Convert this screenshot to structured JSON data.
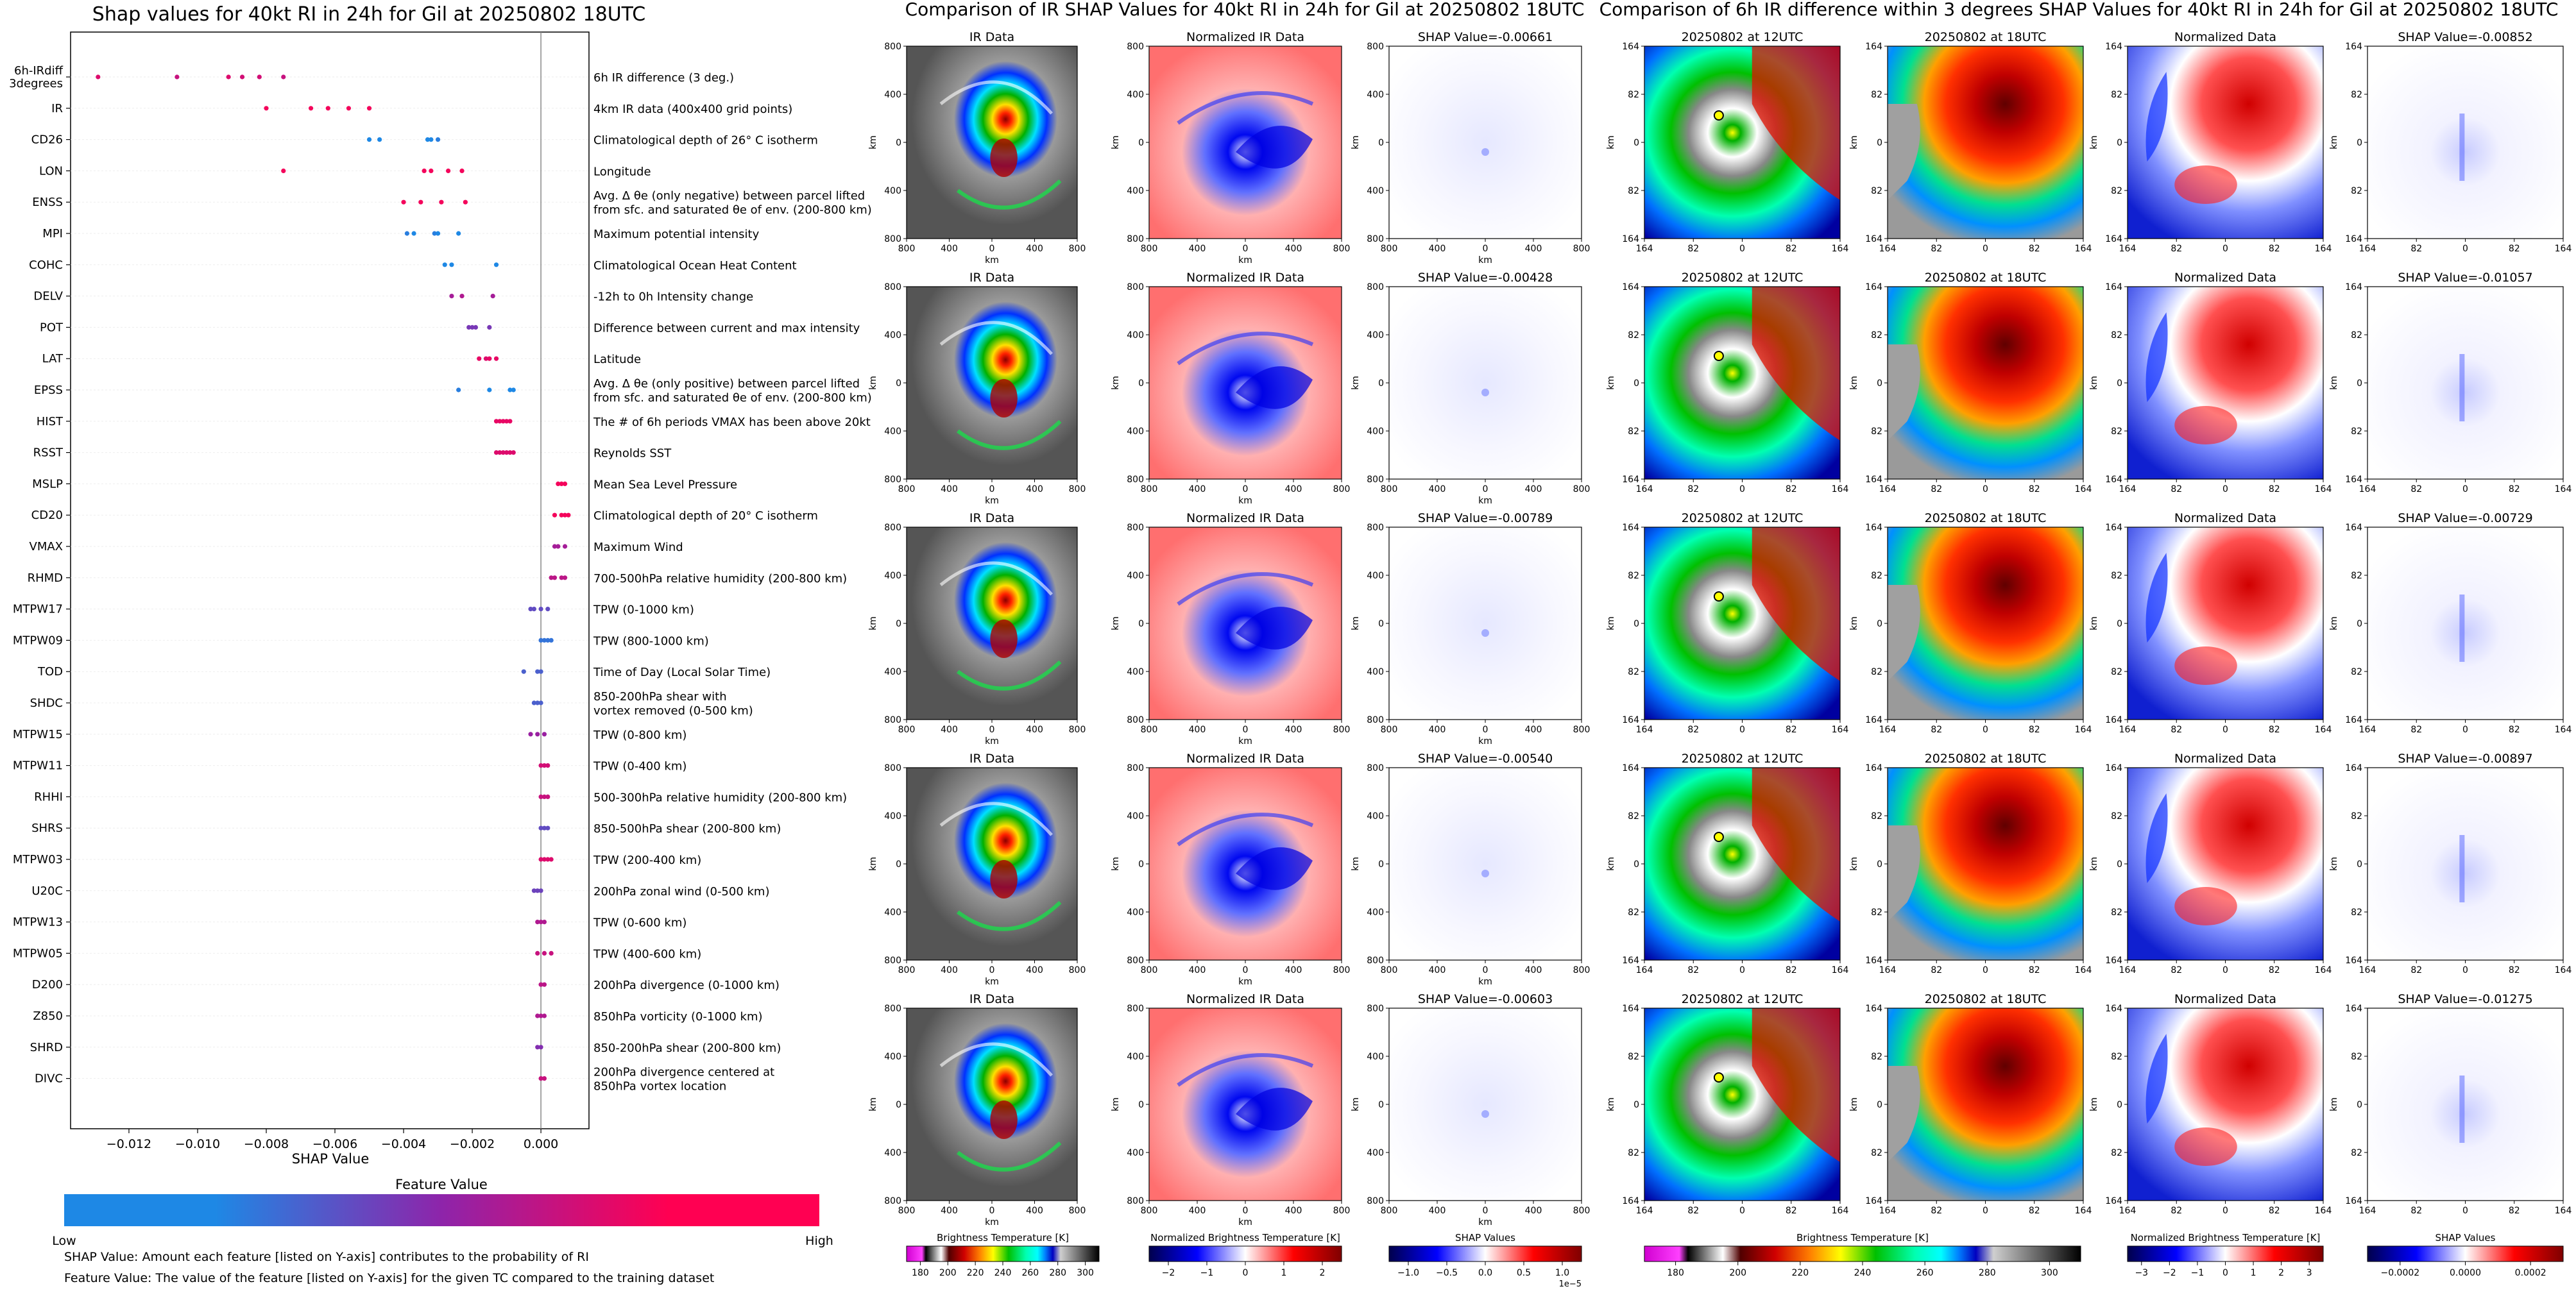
{
  "left_panel": {
    "title": "Shap values for 40kt RI in 24h for Gil at 20250802 18UTC",
    "xlabel": "SHAP Value",
    "xticks": [
      "−0.012",
      "−0.010",
      "−0.008",
      "−0.006",
      "−0.004",
      "−0.002",
      "0.000"
    ],
    "colorbar_title": "Feature Value",
    "colorbar_low": "Low",
    "colorbar_high": "High",
    "footnote1": "SHAP Value: Amount each feature [listed on Y-axis] contributes to the probability of RI",
    "footnote2": "Feature Value: The value of the feature [listed on Y-axis] for the given TC compared to the training dataset",
    "colors": {
      "low": "#1e88e5",
      "mid": "#8e24aa",
      "high": "#ff0052"
    }
  },
  "chart_data": [
    {
      "type": "scatter",
      "title": "Shap values for 40kt RI in 24h for Gil at 20250802 18UTC",
      "xlabel": "SHAP Value",
      "xlim": [
        -0.0137,
        0.0014
      ],
      "features": [
        {
          "name": "6h-IRdiff\n3degrees",
          "desc": "6h IR difference (3 deg.)",
          "shap": [
            -0.0129,
            -0.0106,
            -0.0091,
            -0.0087,
            -0.0082,
            -0.0075
          ],
          "fv": [
            0.85,
            0.75,
            0.85,
            0.8,
            0.8,
            0.75
          ]
        },
        {
          "name": "IR",
          "desc": "4km IR data (400x400 grid points)",
          "shap": [
            -0.008,
            -0.0067,
            -0.0062,
            -0.0056,
            -0.005
          ],
          "fv": [
            0.95,
            0.95,
            0.95,
            0.95,
            0.95
          ]
        },
        {
          "name": "CD26",
          "desc": "Climatological depth of 26° C isotherm",
          "shap": [
            -0.005,
            -0.0047,
            -0.0033,
            -0.0032,
            -0.003
          ],
          "fv": [
            0.0,
            0.0,
            0.0,
            0.0,
            0.05
          ]
        },
        {
          "name": "LON",
          "desc": "Longitude",
          "shap": [
            -0.0075,
            -0.0034,
            -0.0032,
            -0.0027,
            -0.0023
          ],
          "fv": [
            0.95,
            0.95,
            0.95,
            0.95,
            0.95
          ]
        },
        {
          "name": "ENSS",
          "desc": "Avg. Δ θe (only negative) between parcel lifted\nfrom sfc. and saturated θe of env. (200-800 km)",
          "shap": [
            -0.004,
            -0.0035,
            -0.0029,
            -0.0022
          ],
          "fv": [
            0.95,
            0.95,
            0.95,
            0.95
          ]
        },
        {
          "name": "MPI",
          "desc": "Maximum potential intensity",
          "shap": [
            -0.0039,
            -0.0037,
            -0.0031,
            -0.003,
            -0.0024
          ],
          "fv": [
            0.05,
            0.0,
            0.05,
            0.0,
            0.0
          ]
        },
        {
          "name": "COHC",
          "desc": "Climatological Ocean Heat Content",
          "shap": [
            -0.0028,
            -0.0026,
            -0.0013
          ],
          "fv": [
            0.0,
            0.0,
            0.0
          ]
        },
        {
          "name": "DELV",
          "desc": "-12h to 0h Intensity change",
          "shap": [
            -0.0026,
            -0.0023,
            -0.0014
          ],
          "fv": [
            0.6,
            0.65,
            0.6
          ]
        },
        {
          "name": "POT",
          "desc": "Difference between current and max intensity",
          "shap": [
            -0.0021,
            -0.002,
            -0.0019,
            -0.0015
          ],
          "fv": [
            0.4,
            0.4,
            0.4,
            0.4
          ]
        },
        {
          "name": "LAT",
          "desc": "Latitude",
          "shap": [
            -0.0018,
            -0.0016,
            -0.0015,
            -0.0013
          ],
          "fv": [
            0.9,
            0.85,
            0.9,
            0.9
          ]
        },
        {
          "name": "EPSS",
          "desc": "Avg. Δ θe (only positive) between parcel lifted\nfrom sfc. and saturated θe of env. (200-800 km)",
          "shap": [
            -0.0024,
            -0.0015,
            -0.0009,
            -0.0008
          ],
          "fv": [
            0.05,
            0.0,
            0.0,
            0.0
          ]
        },
        {
          "name": "HIST",
          "desc": "The # of 6h periods VMAX has been above 20kt",
          "shap": [
            -0.0013,
            -0.0012,
            -0.0011,
            -0.001,
            -0.0009
          ],
          "fv": [
            0.9,
            0.9,
            0.9,
            0.9,
            0.9
          ]
        },
        {
          "name": "RSST",
          "desc": "Reynolds SST",
          "shap": [
            -0.0013,
            -0.0012,
            -0.0011,
            -0.001,
            -0.0009,
            -0.0008
          ],
          "fv": [
            0.85,
            0.85,
            0.85,
            0.85,
            0.85,
            0.85
          ]
        },
        {
          "name": "MSLP",
          "desc": "Mean Sea Level Pressure",
          "shap": [
            0.0005,
            0.0006,
            0.0007
          ],
          "fv": [
            0.95,
            0.95,
            0.95
          ]
        },
        {
          "name": "CD20",
          "desc": "Climatological depth of 20° C isotherm",
          "shap": [
            0.0004,
            0.0006,
            0.0007,
            0.0008
          ],
          "fv": [
            0.95,
            0.95,
            0.95,
            0.95
          ]
        },
        {
          "name": "VMAX",
          "desc": "Maximum Wind",
          "shap": [
            0.0004,
            0.0005,
            0.0007
          ],
          "fv": [
            0.6,
            0.6,
            0.6
          ]
        },
        {
          "name": "RHMD",
          "desc": "700-500hPa relative humidity (200-800 km)",
          "shap": [
            0.0003,
            0.0004,
            0.0006,
            0.0007
          ],
          "fv": [
            0.7,
            0.7,
            0.7,
            0.7
          ]
        },
        {
          "name": "MTPW17",
          "desc": "TPW (0-1000 km)",
          "shap": [
            -0.0003,
            -0.0002,
            0.0,
            0.0002
          ],
          "fv": [
            0.3,
            0.3,
            0.3,
            0.3
          ]
        },
        {
          "name": "MTPW09",
          "desc": "TPW (800-1000 km)",
          "shap": [
            0.0,
            0.0001,
            0.0002,
            0.0003
          ],
          "fv": [
            0.1,
            0.1,
            0.1,
            0.1
          ]
        },
        {
          "name": "TOD",
          "desc": "Time of Day (Local Solar Time)",
          "shap": [
            -0.0005,
            -0.0001,
            0.0
          ],
          "fv": [
            0.2,
            0.2,
            0.2
          ]
        },
        {
          "name": "SHDC",
          "desc": "850-200hPa shear with\nvortex removed (0-500 km)",
          "shap": [
            -0.0002,
            -0.0001,
            0.0
          ],
          "fv": [
            0.2,
            0.2,
            0.2
          ]
        },
        {
          "name": "MTPW15",
          "desc": "TPW (0-800 km)",
          "shap": [
            -0.0003,
            -0.0001,
            0.0001
          ],
          "fv": [
            0.55,
            0.55,
            0.55
          ]
        },
        {
          "name": "MTPW11",
          "desc": "TPW (0-400 km)",
          "shap": [
            0.0,
            0.0001,
            0.0002
          ],
          "fv": [
            0.8,
            0.8,
            0.8
          ]
        },
        {
          "name": "RHHI",
          "desc": "500-300hPa relative humidity (200-800 km)",
          "shap": [
            0.0,
            0.0001,
            0.0002
          ],
          "fv": [
            0.75,
            0.75,
            0.75
          ]
        },
        {
          "name": "SHRS",
          "desc": "850-500hPa shear (200-800 km)",
          "shap": [
            0.0,
            0.0001,
            0.0002
          ],
          "fv": [
            0.3,
            0.3,
            0.3
          ]
        },
        {
          "name": "MTPW03",
          "desc": "TPW (200-400 km)",
          "shap": [
            0.0,
            0.0001,
            0.0002,
            0.0003
          ],
          "fv": [
            0.85,
            0.85,
            0.85,
            0.85
          ]
        },
        {
          "name": "U20C",
          "desc": "200hPa zonal wind (0-500 km)",
          "shap": [
            -0.0002,
            -0.0001,
            0.0
          ],
          "fv": [
            0.35,
            0.35,
            0.35
          ]
        },
        {
          "name": "MTPW13",
          "desc": "TPW (0-600 km)",
          "shap": [
            -0.0001,
            0.0,
            0.0001
          ],
          "fv": [
            0.65,
            0.65,
            0.65
          ]
        },
        {
          "name": "MTPW05",
          "desc": "TPW (400-600 km)",
          "shap": [
            -0.0001,
            0.0001,
            0.0003
          ],
          "fv": [
            0.75,
            0.75,
            0.75
          ]
        },
        {
          "name": "D200",
          "desc": "200hPa divergence (0-1000 km)",
          "shap": [
            0.0,
            0.0001
          ],
          "fv": [
            0.7,
            0.7
          ]
        },
        {
          "name": "Z850",
          "desc": "850hPa vorticity (0-1000 km)",
          "shap": [
            -0.0001,
            0.0,
            0.0001
          ],
          "fv": [
            0.65,
            0.65,
            0.65
          ]
        },
        {
          "name": "SHRD",
          "desc": "850-200hPa shear (200-800 km)",
          "shap": [
            -0.0001,
            0.0
          ],
          "fv": [
            0.45,
            0.45
          ]
        },
        {
          "name": "DIVC",
          "desc": "200hPa divergence centered at\n850hPa vortex location",
          "shap": [
            0.0,
            0.0001
          ],
          "fv": [
            0.75,
            0.75
          ]
        }
      ]
    },
    {
      "type": "heatmap",
      "title": "Comparison of IR SHAP Values for 40kt RI in 24h for Gil at 20250802 18UTC",
      "panel_titles": [
        "IR Data",
        "Normalized IR Data"
      ],
      "shap_titles": [
        "SHAP Value=-0.00661",
        "SHAP Value=-0.00428",
        "SHAP Value=-0.00789",
        "SHAP Value=-0.00540",
        "SHAP Value=-0.00603"
      ],
      "ticks": [
        "800",
        "400",
        "0",
        "400",
        "800"
      ],
      "xlabel": "km",
      "ylabel": "km",
      "colorbars": [
        {
          "label": "Brightness Temperature [K]",
          "ticks": [
            "180",
            "200",
            "220",
            "240",
            "260",
            "280",
            "300"
          ]
        },
        {
          "label": "Normalized Brightness Temperature [K]",
          "ticks": [
            "−2",
            "−1",
            "0",
            "1",
            "2"
          ]
        },
        {
          "label": "SHAP Values",
          "ticks": [
            "−1.0",
            "−0.5",
            "0.0",
            "0.5",
            "1.0"
          ],
          "exponent": "1e−5"
        }
      ]
    },
    {
      "type": "heatmap",
      "title": "Comparison of 6h IR difference within 3 degrees SHAP Values for 40kt RI in 24h for Gil at 20250802 18UTC",
      "panel_titles": [
        "20250802 at 12UTC",
        "20250802 at 18UTC",
        "Normalized Data"
      ],
      "shap_titles": [
        "SHAP Value=-0.00852",
        "SHAP Value=-0.01057",
        "SHAP Value=-0.00729",
        "SHAP Value=-0.00897",
        "SHAP Value=-0.01275"
      ],
      "ticks": [
        "164",
        "82",
        "0",
        "82",
        "164"
      ],
      "ylabel": "km",
      "colorbars": [
        {
          "label": "Brightness Temperature [K]",
          "ticks": [
            "180",
            "200",
            "220",
            "240",
            "260",
            "280",
            "300"
          ]
        },
        {
          "label": "Normalized Brightness Temperature [K]",
          "ticks": [
            "−3",
            "−2",
            "−1",
            "0",
            "1",
            "2",
            "3"
          ]
        },
        {
          "label": "SHAP Values",
          "ticks": [
            "−0.0002",
            "0.0000",
            "0.0002"
          ]
        }
      ]
    }
  ]
}
